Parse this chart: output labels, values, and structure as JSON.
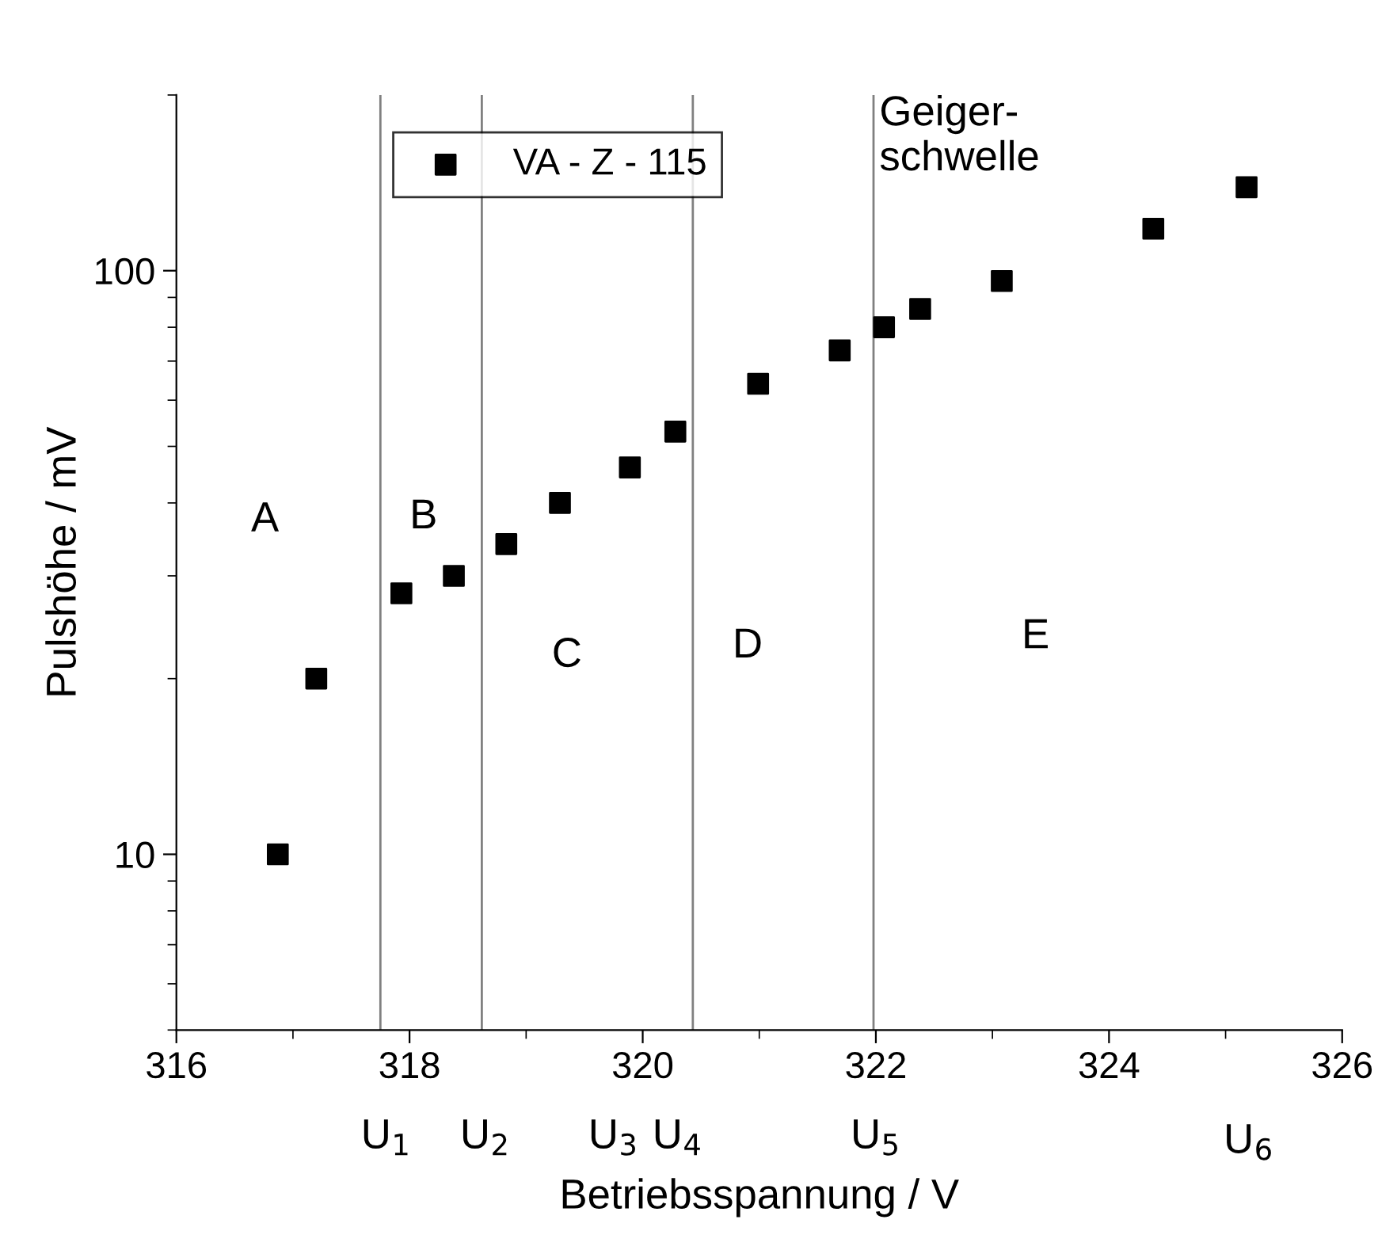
{
  "chart_data": {
    "type": "scatter",
    "xlabel": "Betriebsspannung / V",
    "ylabel": "Pulshöhe / mV",
    "series": [
      {
        "name": "VA - Z - 115",
        "color": "#000000",
        "x": [
          316.87,
          317.2,
          317.93,
          318.38,
          318.83,
          319.29,
          319.89,
          320.28,
          320.99,
          321.69,
          322.07,
          322.38,
          323.08,
          324.38,
          325.18
        ],
        "values": [
          10,
          20,
          28,
          30,
          34,
          40,
          46,
          53,
          64,
          73,
          80,
          86,
          96,
          118,
          139
        ]
      }
    ],
    "xlim": [
      316,
      326
    ],
    "xticks": [
      316,
      318,
      320,
      322,
      324,
      326
    ],
    "ylim": [
      5,
      200
    ],
    "yticks": [
      10,
      100
    ],
    "log": "y",
    "marker": "square",
    "grid": false,
    "legend": "top left",
    "ref_lines": [
      {
        "axis": "x",
        "value": 317.75,
        "color": "#808080"
      },
      {
        "axis": "x",
        "value": 318.62,
        "color": "#808080"
      },
      {
        "axis": "x",
        "value": 320.43,
        "color": "#808080"
      },
      {
        "axis": "x",
        "value": 321.98,
        "label": "Geiger-\nschwelle",
        "color": "#808080"
      }
    ],
    "annotations": [
      "A",
      "B",
      "C",
      "D",
      "E",
      "U$_{1}$",
      "U$_{2}$",
      "U$_{3}$",
      "U$_{4}$",
      "U$_{5}$",
      "U$_{6}$"
    ]
  }
}
